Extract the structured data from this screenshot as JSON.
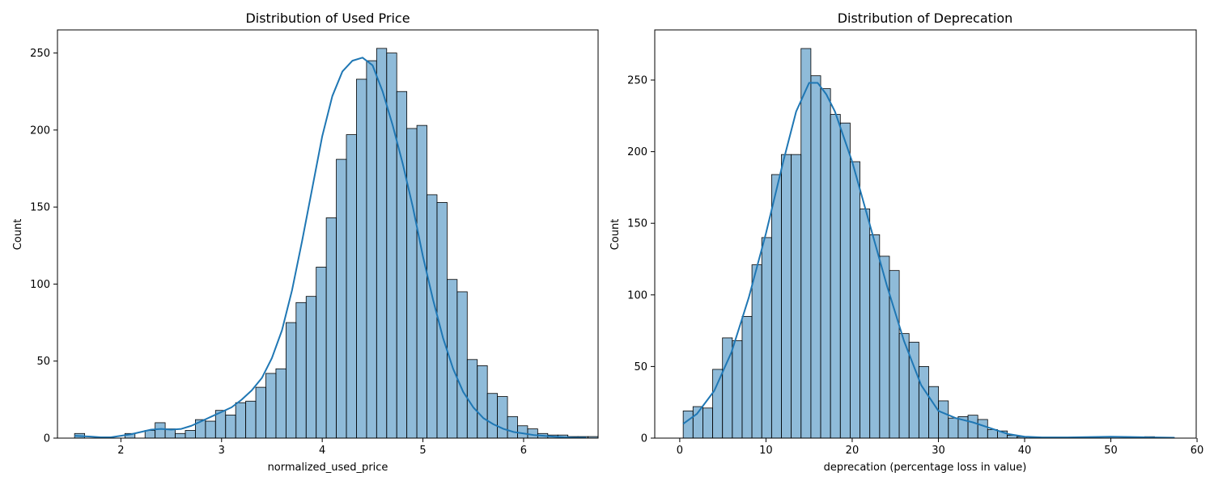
{
  "chart_data": [
    {
      "type": "bar",
      "title": "Distribution of Used Price",
      "xlabel": "normalized_used_price",
      "ylabel": "Count",
      "xlim": [
        1.37,
        6.74
      ],
      "ylim": [
        0,
        265
      ],
      "xticks": [
        2,
        3,
        4,
        5,
        6
      ],
      "yticks": [
        0,
        50,
        100,
        150,
        200,
        250
      ],
      "bin_start": 1.54,
      "bin_width": 0.1,
      "values": [
        3,
        0,
        0,
        0,
        0,
        3,
        0,
        5,
        10,
        6,
        3,
        5,
        12,
        11,
        18,
        15,
        23,
        24,
        33,
        42,
        45,
        75,
        88,
        92,
        111,
        143,
        181,
        197,
        233,
        245,
        253,
        250,
        225,
        201,
        203,
        158,
        153,
        103,
        95,
        51,
        47,
        29,
        27,
        14,
        8,
        6,
        3,
        2,
        2,
        1,
        1,
        1
      ],
      "kde": {
        "x": [
          1.54,
          1.7,
          1.8,
          1.9,
          2.0,
          2.1,
          2.2,
          2.3,
          2.4,
          2.5,
          2.6,
          2.7,
          2.8,
          2.9,
          3.0,
          3.1,
          3.2,
          3.3,
          3.4,
          3.5,
          3.6,
          3.7,
          3.8,
          3.9,
          4.0,
          4.1,
          4.2,
          4.3,
          4.4,
          4.5,
          4.6,
          4.7,
          4.8,
          4.9,
          5.0,
          5.1,
          5.2,
          5.3,
          5.4,
          5.5,
          5.6,
          5.7,
          5.8,
          5.9,
          6.0,
          6.1,
          6.2,
          6.3,
          6.4,
          6.5,
          6.62
        ],
        "y": [
          1.5,
          1,
          0.5,
          0.5,
          1.5,
          2.5,
          4,
          5.5,
          6,
          5.5,
          6,
          8,
          11,
          14,
          17,
          20,
          25,
          31,
          39,
          52,
          70,
          96,
          128,
          162,
          196,
          222,
          238,
          245,
          247,
          242,
          225,
          203,
          178,
          150,
          118,
          90,
          65,
          45,
          30,
          20,
          13,
          9,
          6,
          4,
          3,
          2,
          1.5,
          1,
          0.5,
          0.3,
          0.3
        ]
      }
    },
    {
      "type": "bar",
      "title": "Distribution of Deprecation",
      "xlabel": "deprecation (percentage loss in value)",
      "ylabel": "Count",
      "xlim": [
        -2.9,
        59.9
      ],
      "ylim": [
        0,
        285
      ],
      "xticks": [
        0,
        10,
        20,
        30,
        40,
        50,
        60
      ],
      "yticks": [
        0,
        50,
        100,
        150,
        200,
        250
      ],
      "bin_start": 0.4,
      "bin_width": 1.139,
      "values": [
        19,
        22,
        21,
        48,
        70,
        68,
        85,
        121,
        140,
        184,
        198,
        198,
        272,
        253,
        244,
        226,
        220,
        193,
        160,
        142,
        127,
        117,
        73,
        67,
        50,
        36,
        26,
        14,
        15,
        16,
        13,
        6,
        5,
        2,
        1,
        0,
        0,
        0,
        0,
        0,
        0,
        0,
        0,
        0,
        0,
        0,
        0,
        1,
        0,
        0
      ],
      "kde": {
        "x": [
          0.4,
          2,
          4,
          6,
          8,
          10,
          12,
          13.5,
          15,
          16,
          17,
          18,
          20,
          22,
          24,
          26,
          28,
          30,
          32,
          34,
          36,
          38,
          40,
          42,
          45,
          50,
          55,
          57.4
        ],
        "y": [
          10,
          17,
          33,
          60,
          98,
          143,
          193,
          228,
          248,
          248,
          240,
          228,
          193,
          150,
          107,
          68,
          37,
          19,
          14,
          11,
          7,
          3,
          1,
          0.5,
          0.5,
          1,
          0.5,
          0.3
        ]
      }
    }
  ]
}
